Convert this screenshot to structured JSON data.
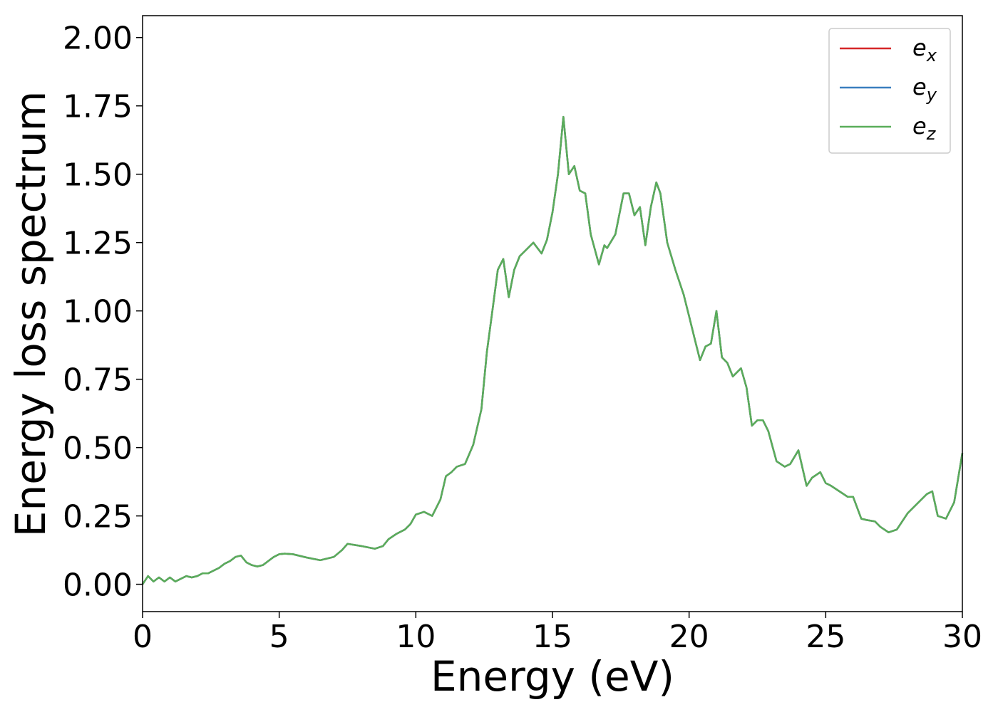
{
  "chart_data": {
    "type": "line",
    "title": "",
    "xlabel": "Energy (eV)",
    "ylabel": "Energy loss spectrum",
    "xlim": [
      0,
      30
    ],
    "ylim": [
      -0.1,
      2.08
    ],
    "xticks": [
      "0",
      "5",
      "10",
      "15",
      "20",
      "25",
      "30"
    ],
    "yticks": [
      "0.00",
      "0.25",
      "0.50",
      "0.75",
      "1.00",
      "1.25",
      "1.50",
      "1.75",
      "2.00"
    ],
    "grid": false,
    "legend": "top-right",
    "colors": {
      "e_x": "#d62728",
      "e_y": "#3a7ebf",
      "e_z": "#5aad5a"
    },
    "series": [
      {
        "name": "e_x",
        "label_main": "e",
        "label_sub": "x"
      },
      {
        "name": "e_y",
        "label_main": "e",
        "label_sub": "y"
      },
      {
        "name": "e_z",
        "label_main": "e",
        "label_sub": "z"
      }
    ],
    "x": [
      0,
      0.2,
      0.4,
      0.6,
      0.8,
      1.0,
      1.2,
      1.4,
      1.6,
      1.8,
      2.0,
      2.2,
      2.4,
      2.6,
      2.8,
      3.0,
      3.2,
      3.4,
      3.6,
      3.8,
      4.0,
      4.2,
      4.4,
      4.6,
      4.8,
      5.0,
      5.2,
      5.5,
      6.0,
      6.5,
      7.0,
      7.3,
      7.5,
      8.0,
      8.5,
      8.8,
      9.0,
      9.3,
      9.6,
      9.8,
      10.0,
      10.3,
      10.6,
      10.9,
      11.1,
      11.3,
      11.5,
      11.8,
      12.1,
      12.4,
      12.6,
      12.8,
      13.0,
      13.2,
      13.4,
      13.6,
      13.8,
      14.0,
      14.3,
      14.6,
      14.8,
      15.0,
      15.2,
      15.4,
      15.6,
      15.8,
      16.0,
      16.2,
      16.4,
      16.7,
      16.9,
      17.0,
      17.3,
      17.6,
      17.8,
      18.0,
      18.2,
      18.4,
      18.6,
      18.8,
      18.95,
      19.2,
      19.5,
      19.8,
      20.0,
      20.2,
      20.4,
      20.6,
      20.8,
      21.0,
      21.2,
      21.4,
      21.6,
      21.9,
      22.1,
      22.3,
      22.5,
      22.7,
      22.9,
      23.2,
      23.5,
      23.7,
      24.0,
      24.3,
      24.5,
      24.8,
      25.0,
      25.2,
      25.5,
      25.8,
      26.0,
      26.3,
      26.5,
      26.8,
      27.0,
      27.3,
      27.6,
      28.0,
      28.3,
      28.7,
      28.9,
      29.1,
      29.4,
      29.7,
      30.0
    ],
    "values": [
      0.0,
      0.03,
      0.01,
      0.025,
      0.01,
      0.025,
      0.01,
      0.02,
      0.03,
      0.025,
      0.03,
      0.04,
      0.04,
      0.05,
      0.06,
      0.075,
      0.085,
      0.1,
      0.105,
      0.08,
      0.07,
      0.065,
      0.07,
      0.085,
      0.1,
      0.11,
      0.112,
      0.11,
      0.098,
      0.088,
      0.1,
      0.125,
      0.148,
      0.14,
      0.13,
      0.14,
      0.165,
      0.185,
      0.2,
      0.22,
      0.255,
      0.265,
      0.25,
      0.31,
      0.395,
      0.41,
      0.43,
      0.44,
      0.51,
      0.64,
      0.85,
      1.0,
      1.15,
      1.19,
      1.05,
      1.15,
      1.2,
      1.22,
      1.25,
      1.21,
      1.26,
      1.36,
      1.5,
      1.71,
      1.5,
      1.53,
      1.44,
      1.43,
      1.28,
      1.17,
      1.24,
      1.23,
      1.28,
      1.43,
      1.43,
      1.35,
      1.38,
      1.24,
      1.38,
      1.47,
      1.43,
      1.25,
      1.15,
      1.06,
      0.98,
      0.9,
      0.82,
      0.87,
      0.88,
      1.0,
      0.83,
      0.81,
      0.76,
      0.79,
      0.72,
      0.58,
      0.6,
      0.6,
      0.56,
      0.45,
      0.43,
      0.44,
      0.49,
      0.36,
      0.39,
      0.41,
      0.37,
      0.36,
      0.34,
      0.32,
      0.32,
      0.24,
      0.235,
      0.23,
      0.21,
      0.19,
      0.2,
      0.26,
      0.29,
      0.33,
      0.34,
      0.25,
      0.24,
      0.3,
      0.48
    ]
  }
}
